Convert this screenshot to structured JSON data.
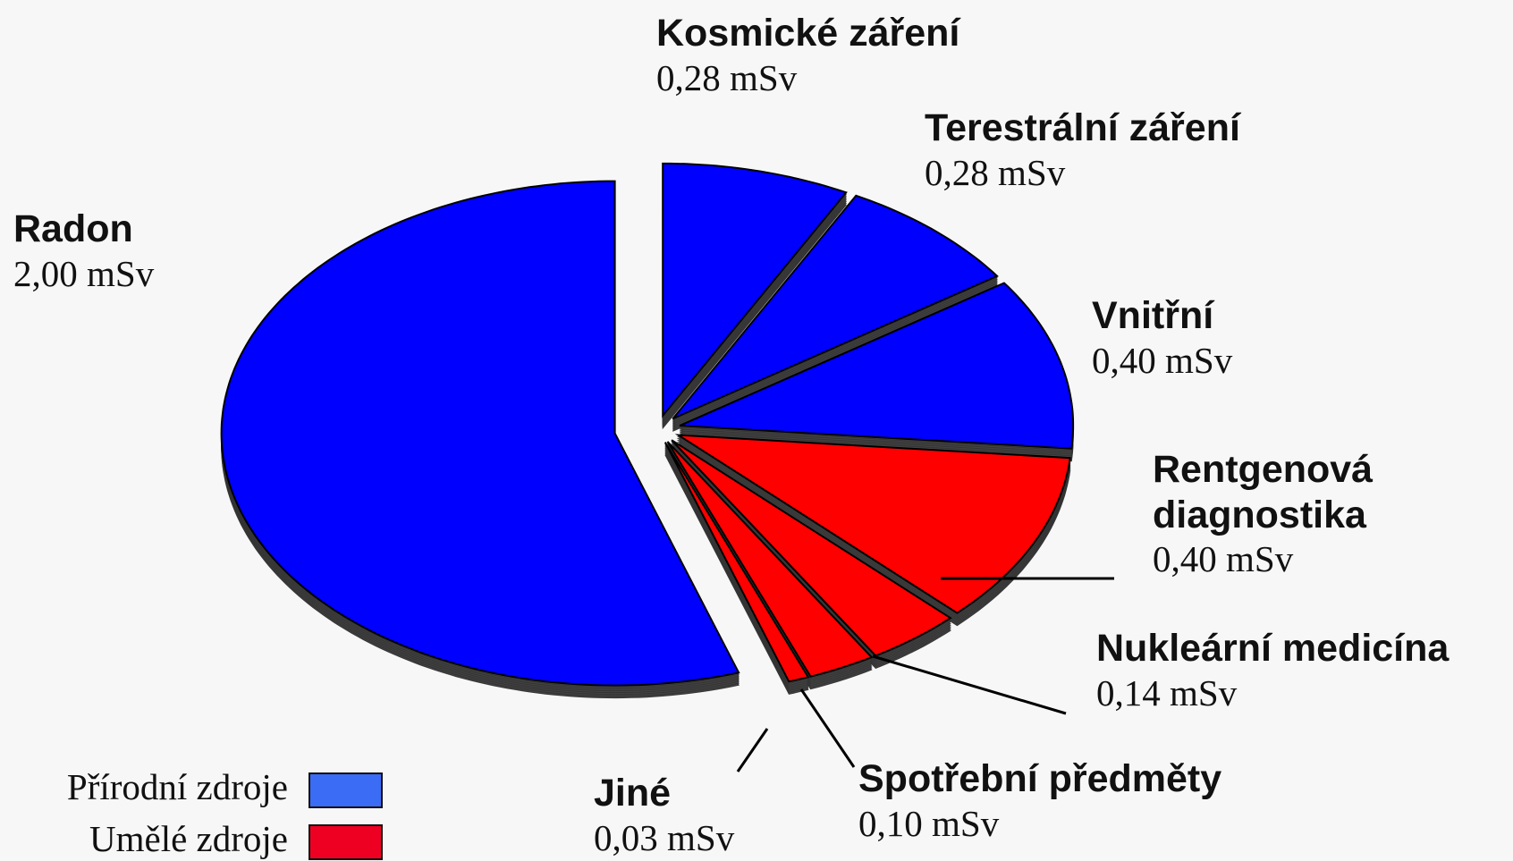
{
  "chart_data": {
    "type": "pie",
    "categories": [
      "Kosmické záření",
      "Terestrální záření",
      "Vnitřní",
      "Rentgenová diagnostika",
      "Nukleární medicína",
      "Spotřební předměty",
      "Jiné",
      "Radon"
    ],
    "values": [
      0.28,
      0.28,
      0.4,
      0.4,
      0.14,
      0.1,
      0.03,
      2.0
    ],
    "value_labels": [
      "0,28 mSv",
      "0,28 mSv",
      "0,40 mSv",
      "0,40 mSv",
      "0,14 mSv",
      "0,10 mSv",
      "0,03 mSv",
      "2,00 mSv"
    ],
    "colors": [
      "#0000ff",
      "#0000ff",
      "#0000ff",
      "#ff0000",
      "#ff0000",
      "#ff0000",
      "#ff0000",
      "#0000ff"
    ],
    "legend": [
      {
        "name": "Přírodní zdroje",
        "color": "#3a6cf5"
      },
      {
        "name": "Umělé zdroje",
        "color": "#ee0022"
      }
    ]
  }
}
